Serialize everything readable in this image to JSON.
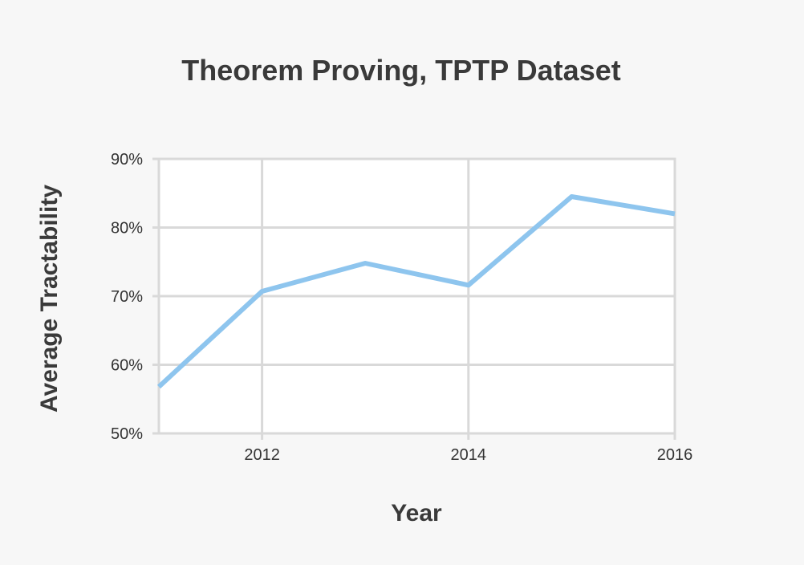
{
  "chart_data": {
    "type": "line",
    "title": "Theorem Proving, TPTP Dataset",
    "xlabel": "Year",
    "ylabel": "Average Tractability",
    "xlim": [
      2011,
      2016
    ],
    "ylim": [
      50,
      90
    ],
    "x_ticks": [
      2012,
      2014,
      2016
    ],
    "x_tick_labels": [
      "2012",
      "2014",
      "2016"
    ],
    "y_ticks": [
      50,
      60,
      70,
      80,
      90
    ],
    "y_tick_labels": [
      "50%",
      "60%",
      "70%",
      "80%",
      "90%"
    ],
    "grid": true,
    "legend": "none",
    "series": [
      {
        "color": "#8ec5ee",
        "x": [
          2011,
          2012,
          2013,
          2014,
          2015,
          2016
        ],
        "values": [
          56.8,
          70.7,
          74.8,
          71.6,
          84.5,
          82.0
        ]
      }
    ]
  }
}
